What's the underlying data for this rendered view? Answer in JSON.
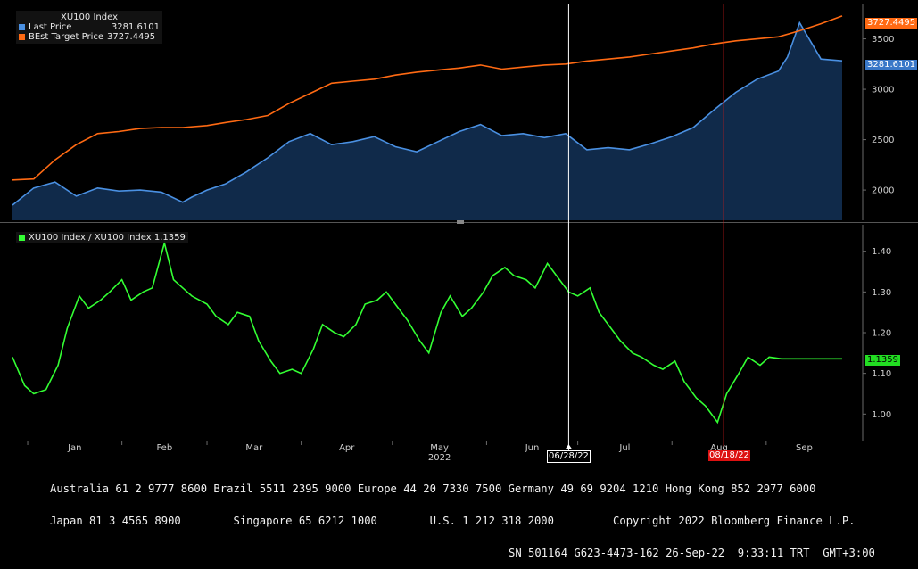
{
  "colors": {
    "background": "#000000",
    "last_price": "#4a90e2",
    "area_fill": "#102a4a",
    "target": "#ff6a13",
    "ratio": "#33ff33",
    "date_marker_white": "#ffffff",
    "date_marker_red": "#cc1a1a",
    "axis": "#6a6a6a",
    "grid": "#2e2e2e"
  },
  "upper_legend": {
    "title": "XU100 Index",
    "rows": [
      {
        "label": "Last Price",
        "value": "3281.6101",
        "color": "#4a90e2"
      },
      {
        "label": "BEst Target Price",
        "value": "3727.4495",
        "color": "#ff6a13"
      }
    ]
  },
  "lower_legend": {
    "label": "XU100 Index / XU100 Index 1.1359",
    "color": "#33ff33"
  },
  "value_tags": {
    "target": "3727.4495",
    "last": "3281.6101",
    "ratio": "1.1359"
  },
  "date_markers": {
    "white": "06/28/22",
    "red": "08/18/22"
  },
  "x_axis": {
    "months": [
      "Jan",
      "Feb",
      "Mar",
      "Apr",
      "May",
      "Jun",
      "Jul",
      "Aug",
      "Sep"
    ],
    "year": "2022"
  },
  "footer": {
    "line1": "Australia 61 2 9777 8600 Brazil 5511 2395 9000 Europe 44 20 7330 7500 Germany 49 69 9204 1210 Hong Kong 852 2977 6000",
    "line2": "Japan 81 3 4565 8900        Singapore 65 6212 1000        U.S. 1 212 318 2000         Copyright 2022 Bloomberg Finance L.P.",
    "line3": "SN 501164 G623-4473-162 26-Sep-22  9:33:11 TRT  GMT+3:00"
  },
  "chart_data": [
    {
      "type": "area",
      "x_type": "date",
      "x_range": [
        "2021-12-27",
        "2022-09-26"
      ],
      "ylim": [
        1700,
        3850
      ],
      "y_ticks": [
        2000,
        2500,
        3000,
        3500
      ],
      "grid": false,
      "legend_position": "top-left",
      "series": [
        {
          "name": "Last Price",
          "color": "#4a90e2",
          "x": [
            "2021-12-27",
            "2022-01-03",
            "2022-01-10",
            "2022-01-17",
            "2022-01-24",
            "2022-01-31",
            "2022-02-07",
            "2022-02-14",
            "2022-02-21",
            "2022-02-24",
            "2022-03-01",
            "2022-03-07",
            "2022-03-14",
            "2022-03-21",
            "2022-03-28",
            "2022-04-04",
            "2022-04-11",
            "2022-04-18",
            "2022-04-25",
            "2022-05-02",
            "2022-05-09",
            "2022-05-16",
            "2022-05-23",
            "2022-05-30",
            "2022-06-06",
            "2022-06-13",
            "2022-06-20",
            "2022-06-27",
            "2022-07-04",
            "2022-07-11",
            "2022-07-18",
            "2022-07-25",
            "2022-08-01",
            "2022-08-08",
            "2022-08-15",
            "2022-08-22",
            "2022-08-29",
            "2022-09-05",
            "2022-09-08",
            "2022-09-12",
            "2022-09-19",
            "2022-09-26"
          ],
          "values": [
            1850,
            2020,
            2080,
            1940,
            2020,
            1990,
            2000,
            1980,
            1880,
            1930,
            2000,
            2060,
            2180,
            2320,
            2480,
            2560,
            2450,
            2480,
            2530,
            2430,
            2380,
            2480,
            2580,
            2650,
            2540,
            2560,
            2520,
            2560,
            2400,
            2420,
            2400,
            2460,
            2530,
            2620,
            2800,
            2970,
            3100,
            3180,
            3320,
            3660,
            3300,
            3281.6101
          ]
        },
        {
          "name": "BEst Target Price",
          "color": "#ff6a13",
          "x": [
            "2021-12-27",
            "2022-01-03",
            "2022-01-10",
            "2022-01-17",
            "2022-01-24",
            "2022-01-31",
            "2022-02-07",
            "2022-02-14",
            "2022-02-21",
            "2022-03-01",
            "2022-03-07",
            "2022-03-14",
            "2022-03-21",
            "2022-03-28",
            "2022-04-04",
            "2022-04-11",
            "2022-04-18",
            "2022-04-25",
            "2022-05-02",
            "2022-05-09",
            "2022-05-16",
            "2022-05-23",
            "2022-05-30",
            "2022-06-06",
            "2022-06-13",
            "2022-06-20",
            "2022-06-27",
            "2022-07-04",
            "2022-07-11",
            "2022-07-18",
            "2022-07-25",
            "2022-08-01",
            "2022-08-08",
            "2022-08-15",
            "2022-08-22",
            "2022-08-29",
            "2022-09-05",
            "2022-09-12",
            "2022-09-19",
            "2022-09-26"
          ],
          "values": [
            2100,
            2110,
            2300,
            2450,
            2560,
            2580,
            2610,
            2620,
            2620,
            2640,
            2670,
            2700,
            2740,
            2860,
            2960,
            3060,
            3080,
            3100,
            3140,
            3170,
            3190,
            3210,
            3240,
            3200,
            3220,
            3240,
            3250,
            3280,
            3300,
            3320,
            3350,
            3380,
            3410,
            3450,
            3480,
            3500,
            3520,
            3580,
            3650,
            3727.4495
          ]
        }
      ]
    },
    {
      "type": "line",
      "x_type": "date",
      "x_range": [
        "2021-12-27",
        "2022-09-26"
      ],
      "ylim": [
        0.935,
        1.465
      ],
      "y_ticks": [
        1.0,
        1.1,
        1.2,
        1.3,
        1.4
      ],
      "grid": false,
      "legend_position": "top-left",
      "series": [
        {
          "name": "XU100 Index / XU100 Index 1.1359",
          "color": "#33ff33",
          "x": [
            "2021-12-27",
            "2021-12-31",
            "2022-01-03",
            "2022-01-07",
            "2022-01-11",
            "2022-01-14",
            "2022-01-18",
            "2022-01-21",
            "2022-01-25",
            "2022-01-28",
            "2022-02-01",
            "2022-02-04",
            "2022-02-08",
            "2022-02-11",
            "2022-02-15",
            "2022-02-18",
            "2022-02-21",
            "2022-02-24",
            "2022-03-01",
            "2022-03-04",
            "2022-03-08",
            "2022-03-11",
            "2022-03-15",
            "2022-03-18",
            "2022-03-22",
            "2022-03-25",
            "2022-03-29",
            "2022-04-01",
            "2022-04-05",
            "2022-04-08",
            "2022-04-12",
            "2022-04-15",
            "2022-04-19",
            "2022-04-22",
            "2022-04-26",
            "2022-04-29",
            "2022-05-03",
            "2022-05-06",
            "2022-05-10",
            "2022-05-13",
            "2022-05-17",
            "2022-05-20",
            "2022-05-24",
            "2022-05-27",
            "2022-05-31",
            "2022-06-03",
            "2022-06-07",
            "2022-06-10",
            "2022-06-14",
            "2022-06-17",
            "2022-06-21",
            "2022-06-24",
            "2022-06-28",
            "2022-07-01",
            "2022-07-05",
            "2022-07-08",
            "2022-07-12",
            "2022-07-15",
            "2022-07-19",
            "2022-07-22",
            "2022-07-26",
            "2022-07-29",
            "2022-08-02",
            "2022-08-05",
            "2022-08-09",
            "2022-08-12",
            "2022-08-16",
            "2022-08-19",
            "2022-08-23",
            "2022-08-26",
            "2022-08-30",
            "2022-09-02",
            "2022-09-06",
            "2022-09-09",
            "2022-09-13",
            "2022-09-16",
            "2022-09-20",
            "2022-09-23",
            "2022-09-26"
          ],
          "values": [
            1.14,
            1.07,
            1.05,
            1.06,
            1.12,
            1.21,
            1.29,
            1.26,
            1.28,
            1.3,
            1.33,
            1.28,
            1.3,
            1.31,
            1.42,
            1.33,
            1.31,
            1.29,
            1.27,
            1.24,
            1.22,
            1.25,
            1.24,
            1.18,
            1.13,
            1.1,
            1.11,
            1.1,
            1.16,
            1.22,
            1.2,
            1.19,
            1.22,
            1.27,
            1.28,
            1.3,
            1.26,
            1.23,
            1.18,
            1.15,
            1.25,
            1.29,
            1.24,
            1.26,
            1.3,
            1.34,
            1.36,
            1.34,
            1.33,
            1.31,
            1.37,
            1.34,
            1.3,
            1.29,
            1.31,
            1.25,
            1.21,
            1.18,
            1.15,
            1.14,
            1.12,
            1.11,
            1.13,
            1.08,
            1.04,
            1.02,
            0.98,
            1.05,
            1.1,
            1.14,
            1.12,
            1.14,
            1.1359,
            1.1359,
            1.1359,
            1.1359,
            1.1359,
            1.1359,
            1.1359
          ]
        }
      ]
    }
  ]
}
